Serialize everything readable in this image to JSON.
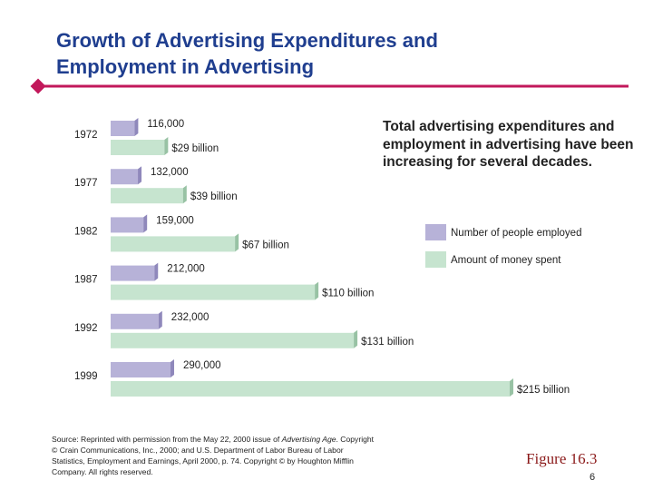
{
  "header": {
    "title_line1": "Growth of Advertising Expenditures and",
    "title_line2": "Employment in Advertising"
  },
  "chart_data": {
    "type": "bar",
    "orientation": "horizontal",
    "categories": [
      "1972",
      "1977",
      "1982",
      "1987",
      "1992",
      "1999"
    ],
    "series": [
      {
        "name": "Number of people employed",
        "color": "#b7b2d8",
        "values": [
          116000,
          132000,
          159000,
          212000,
          232000,
          290000
        ],
        "value_labels": [
          "116,000",
          "132,000",
          "159,000",
          "212,000",
          "232,000",
          "290,000"
        ]
      },
      {
        "name": "Amount of money spent",
        "color": "#c6e4cf",
        "values": [
          29,
          39,
          67,
          110,
          131,
          215
        ],
        "value_labels": [
          "$29 billion",
          "$39 billion",
          "$67 billion",
          "$110 billion",
          "$131 billion",
          "$215 billion"
        ]
      }
    ]
  },
  "description": "Total advertising expenditures and employment in advertising have been increasing for several decades.",
  "source": {
    "before": "Source: Reprinted with permission from the May 22, 2000 issue of ",
    "italic": "Advertising Age",
    "after": ". Copyright © Crain Communications, Inc., 2000; and U.S. Department of Labor Bureau of Labor Statistics, Employment and Earnings, April 2000, p. 74. Copyright © by Houghton Mifflin Company. All rights reserved."
  },
  "figure": "Figure 16.3",
  "page_number": "6"
}
